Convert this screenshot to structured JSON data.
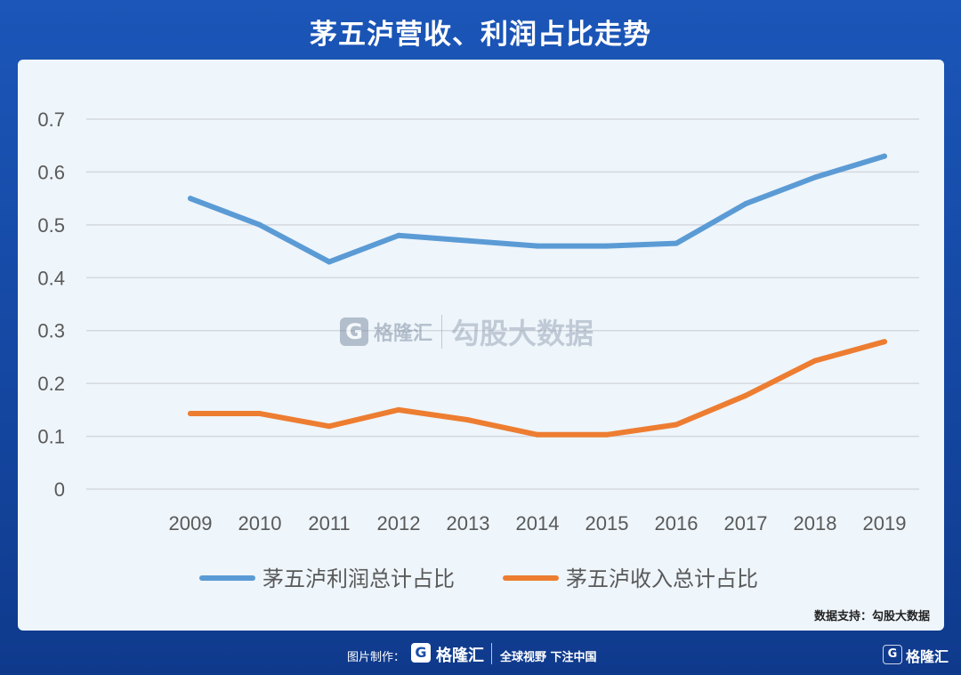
{
  "title": "茅五泸营收、利润占比走势",
  "source": "数据支持：勾股大数据",
  "watermark": {
    "logo": "G",
    "name": "格隆汇",
    "text": "勾股大数据"
  },
  "footer": {
    "made_by": "图片制作：",
    "logo": "G",
    "brand": "格隆汇",
    "slogan": "全球视野 下注中国",
    "corner_logo": "G",
    "corner_brand": "格隆汇"
  },
  "colors": {
    "profit": "#5b9bd5",
    "revenue": "#ed7d31",
    "grid": "#d4d9df",
    "axis_text": "#595959"
  },
  "chart_data": {
    "type": "line",
    "categories": [
      "2009",
      "2010",
      "2011",
      "2012",
      "2013",
      "2014",
      "2015",
      "2016",
      "2017",
      "2018",
      "2019"
    ],
    "series": [
      {
        "name": "茅五泸利润总计占比",
        "values": [
          0.55,
          0.5,
          0.43,
          0.48,
          0.47,
          0.46,
          0.46,
          0.465,
          0.54,
          0.59,
          0.63
        ]
      },
      {
        "name": "茅五泸收入总计占比",
        "values": [
          0.143,
          0.143,
          0.119,
          0.15,
          0.131,
          0.103,
          0.103,
          0.122,
          0.177,
          0.243,
          0.279
        ]
      }
    ],
    "ylim": [
      0,
      0.7
    ],
    "yticks": [
      "0",
      "0.1",
      "0.2",
      "0.3",
      "0.4",
      "0.5",
      "0.6",
      "0.7"
    ],
    "legend": "bottom",
    "grid": true
  }
}
